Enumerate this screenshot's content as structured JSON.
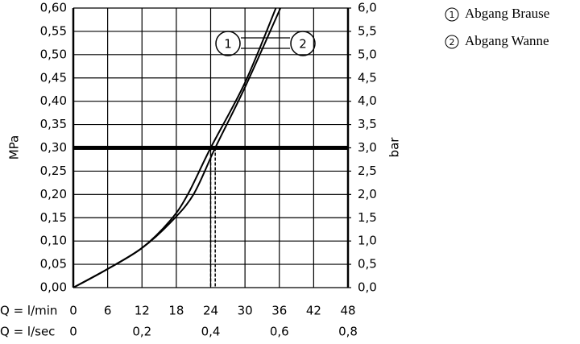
{
  "chart_data": {
    "type": "line",
    "y_label": "MPa",
    "y2_label": "bar",
    "x_row_label": "Q = l/min",
    "x2_row_label": "Q = l/sec",
    "xlim": [
      0,
      48
    ],
    "xticks": [
      0,
      6,
      12,
      18,
      24,
      30,
      36,
      42,
      48
    ],
    "x2lim": [
      0,
      0.8
    ],
    "x2ticks": [
      0,
      {
        "value": 0.2,
        "label": "0,2"
      },
      {
        "value": 0.4,
        "label": "0,4"
      },
      {
        "value": 0.6,
        "label": "0,6"
      },
      {
        "value": 0.8,
        "label": "0,8"
      }
    ],
    "ylim": [
      0,
      0.6
    ],
    "yticks": [
      {
        "value": 0,
        "label": "0,00"
      },
      {
        "value": 0.05,
        "label": "0,05"
      },
      {
        "value": 0.1,
        "label": "0,10"
      },
      {
        "value": 0.15,
        "label": "0,15"
      },
      {
        "value": 0.2,
        "label": "0,20"
      },
      {
        "value": 0.25,
        "label": "0,25"
      },
      {
        "value": 0.3,
        "label": "0,30"
      },
      {
        "value": 0.35,
        "label": "0,35"
      },
      {
        "value": 0.4,
        "label": "0,40"
      },
      {
        "value": 0.45,
        "label": "0,45"
      },
      {
        "value": 0.5,
        "label": "0,50"
      },
      {
        "value": 0.55,
        "label": "0,55"
      },
      {
        "value": 0.6,
        "label": "0,60"
      }
    ],
    "y2lim": [
      0,
      6
    ],
    "y2ticks": [
      {
        "value": 0,
        "label": "0,0"
      },
      {
        "value": 0.5,
        "label": "0,5"
      },
      {
        "value": 1,
        "label": "1,0"
      },
      {
        "value": 1.5,
        "label": "1,5"
      },
      {
        "value": 2,
        "label": "2,0"
      },
      {
        "value": 2.5,
        "label": "2,5"
      },
      {
        "value": 3,
        "label": "3,0"
      },
      {
        "value": 3.5,
        "label": "3,5"
      },
      {
        "value": 4,
        "label": "4,0"
      },
      {
        "value": 4.5,
        "label": "4,5"
      },
      {
        "value": 5,
        "label": "5,0"
      },
      {
        "value": 5.5,
        "label": "5,5"
      },
      {
        "value": 6,
        "label": "6,0"
      }
    ],
    "grid": true,
    "reference_y": 0.3,
    "reference_x": [
      24,
      24.8
    ],
    "series": [
      {
        "name": "Abgang Brause",
        "label": "1",
        "color": "#000000",
        "x": [
          0,
          6,
          12,
          17,
          20,
          24,
          30,
          35.4
        ],
        "values": [
          0,
          0.04,
          0.085,
          0.145,
          0.2,
          0.3,
          0.44,
          0.6
        ]
      },
      {
        "name": "Abgang Wanne",
        "label": "2",
        "color": "#000000",
        "x": [
          0,
          6,
          12,
          17,
          21,
          24.8,
          30,
          36.2
        ],
        "values": [
          0,
          0.04,
          0.085,
          0.14,
          0.2,
          0.3,
          0.43,
          0.6
        ]
      }
    ]
  }
}
